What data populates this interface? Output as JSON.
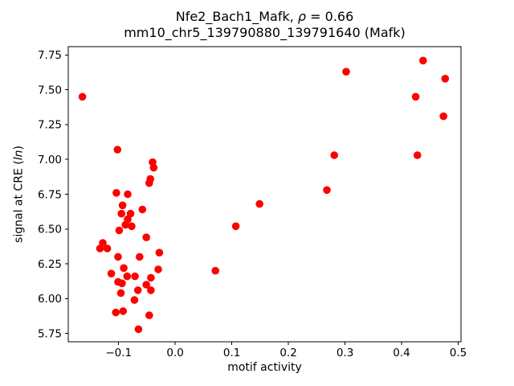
{
  "chart_data": {
    "type": "scatter",
    "title_line1_prefix": "Nfe2_Bach1_Mafk, ",
    "title_line1_rho": "ρ",
    "title_line1_suffix": " = 0.66",
    "title_line2": "mm10_chr5_139790880_139791640 (Mafk)",
    "xlabel": "motif activity",
    "ylabel_prefix": "signal at CRE (",
    "ylabel_italic": "ln",
    "ylabel_suffix": ")",
    "marker_color": "#ff0000",
    "grid": false,
    "legend": null,
    "xlim": [
      -0.189,
      0.505
    ],
    "ylim": [
      5.69,
      7.81
    ],
    "x_ticks": {
      "values": [
        -0.1,
        0.0,
        0.1,
        0.2,
        0.3,
        0.4,
        0.5
      ],
      "labels": [
        "−0.1",
        "0.0",
        "0.1",
        "0.2",
        "0.3",
        "0.4",
        "0.5"
      ]
    },
    "y_ticks": {
      "values": [
        5.75,
        6.0,
        6.25,
        6.5,
        6.75,
        7.0,
        7.25,
        7.5,
        7.75
      ],
      "labels": [
        "5.75",
        "6.00",
        "6.25",
        "6.50",
        "6.75",
        "7.00",
        "7.25",
        "7.50",
        "7.75"
      ]
    },
    "points": [
      [
        -0.164,
        7.45
      ],
      [
        -0.102,
        7.07
      ],
      [
        0.302,
        7.63
      ],
      [
        0.438,
        7.71
      ],
      [
        0.477,
        7.58
      ],
      [
        0.425,
        7.45
      ],
      [
        0.474,
        7.31
      ],
      [
        0.281,
        7.03
      ],
      [
        0.428,
        7.03
      ],
      [
        0.268,
        6.78
      ],
      [
        0.149,
        6.68
      ],
      [
        0.107,
        6.52
      ],
      [
        0.071,
        6.2
      ],
      [
        -0.04,
        6.98
      ],
      [
        -0.038,
        6.94
      ],
      [
        -0.044,
        6.86
      ],
      [
        -0.046,
        6.83
      ],
      [
        -0.104,
        6.76
      ],
      [
        -0.084,
        6.75
      ],
      [
        -0.093,
        6.67
      ],
      [
        -0.058,
        6.64
      ],
      [
        -0.095,
        6.61
      ],
      [
        -0.079,
        6.61
      ],
      [
        -0.084,
        6.57
      ],
      [
        -0.088,
        6.53
      ],
      [
        -0.077,
        6.52
      ],
      [
        -0.099,
        6.49
      ],
      [
        -0.051,
        6.44
      ],
      [
        -0.128,
        6.4
      ],
      [
        -0.133,
        6.36
      ],
      [
        -0.12,
        6.36
      ],
      [
        -0.101,
        6.3
      ],
      [
        -0.063,
        6.3
      ],
      [
        -0.028,
        6.33
      ],
      [
        -0.091,
        6.22
      ],
      [
        -0.113,
        6.18
      ],
      [
        -0.03,
        6.21
      ],
      [
        -0.085,
        6.16
      ],
      [
        -0.071,
        6.16
      ],
      [
        -0.101,
        6.12
      ],
      [
        -0.094,
        6.11
      ],
      [
        -0.043,
        6.15
      ],
      [
        -0.051,
        6.1
      ],
      [
        -0.066,
        6.06
      ],
      [
        -0.043,
        6.06
      ],
      [
        -0.096,
        6.04
      ],
      [
        -0.072,
        5.99
      ],
      [
        -0.105,
        5.9
      ],
      [
        -0.092,
        5.91
      ],
      [
        -0.046,
        5.88
      ],
      [
        -0.065,
        5.78
      ]
    ]
  }
}
